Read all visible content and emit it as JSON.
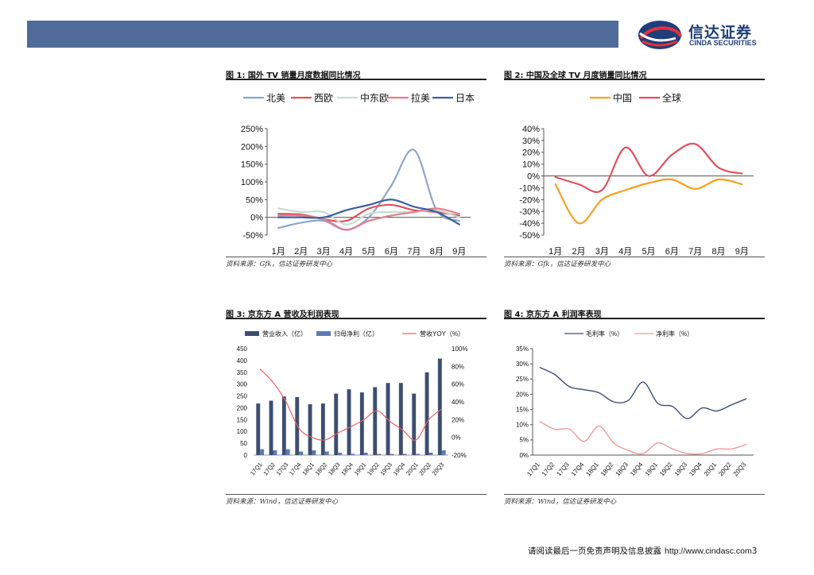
{
  "header": {
    "brand_cn": "信达证券",
    "brand_en": "CINDA SECURITIES",
    "bar_color": "#4f6b99",
    "brand_color": "#1f3d7a",
    "logo_icon": "cinda-swirl-logo"
  },
  "panels": [
    {
      "title": "图 1:  国外 TV 销量月度数据同比情况",
      "source": "资料来源：Gfk，信达证券研发中心"
    },
    {
      "title": "图 2:  中国及全球 TV 月度销量同比情况",
      "source": "资料来源：Gfk，信达证券研发中心"
    },
    {
      "title": "图 3:  京东方 A 营收及利润表现",
      "source": "资料来源：Wind，信达证券研发中心"
    },
    {
      "title": "图 4:  京东方 A 利润率表现",
      "source": "资料来源：Wind，信达证券研发中心"
    }
  ],
  "footer": {
    "text": "请阅读最后一页免责声明及信息披露",
    "url": "http://www.cindasc.com",
    "page": "3"
  },
  "chart_data": [
    {
      "type": "line",
      "smooth": true,
      "categories": [
        "1月",
        "2月",
        "3月",
        "4月",
        "5月",
        "6月",
        "7月",
        "8月",
        "9月"
      ],
      "ylim": [
        -50,
        250
      ],
      "yticks": [
        -50,
        0,
        50,
        100,
        150,
        200,
        250
      ],
      "ytick_labels": [
        "-50%",
        "0%",
        "50%",
        "100%",
        "150%",
        "200%",
        "250%"
      ],
      "legend": "top",
      "series": [
        {
          "name": "北美",
          "color": "#8fa5c8",
          "values": [
            -30,
            -15,
            -10,
            -35,
            0,
            90,
            190,
            20,
            -10
          ]
        },
        {
          "name": "西欧",
          "color": "#e0505e",
          "values": [
            10,
            8,
            -5,
            -10,
            25,
            35,
            20,
            15,
            5
          ]
        },
        {
          "name": "中东欧",
          "color": "#c8dcd4",
          "values": [
            25,
            15,
            15,
            -20,
            10,
            15,
            15,
            20,
            0
          ]
        },
        {
          "name": "拉美",
          "color": "#e07f90",
          "values": [
            5,
            5,
            -5,
            -35,
            -10,
            5,
            15,
            25,
            10
          ]
        },
        {
          "name": "日本",
          "color": "#3b5fa0",
          "values": [
            0,
            0,
            0,
            20,
            35,
            50,
            30,
            15,
            -20
          ]
        }
      ]
    },
    {
      "type": "line",
      "smooth": true,
      "categories": [
        "1月",
        "2月",
        "3月",
        "4月",
        "5月",
        "6月",
        "7月",
        "8月",
        "9月"
      ],
      "ylim": [
        -50,
        40
      ],
      "yticks": [
        -50,
        -40,
        -30,
        -20,
        -10,
        0,
        10,
        20,
        30,
        40
      ],
      "ytick_labels": [
        "-50%",
        "-40%",
        "-30%",
        "-20%",
        "-10%",
        "0%",
        "10%",
        "20%",
        "30%",
        "40%"
      ],
      "legend": "top",
      "series": [
        {
          "name": "中国",
          "color": "#f5a020",
          "values": [
            -7,
            -40,
            -20,
            -12,
            -6,
            -3,
            -11,
            -3,
            -7
          ]
        },
        {
          "name": "全球",
          "color": "#e0505e",
          "values": [
            -1,
            -7,
            -12,
            24,
            0,
            18,
            27,
            7,
            2
          ]
        }
      ]
    },
    {
      "type": "bar",
      "categories": [
        "17Q1",
        "17Q2",
        "17Q3",
        "17Q4",
        "18Q1",
        "18Q2",
        "18Q3",
        "18Q4",
        "19Q1",
        "19Q2",
        "19Q3",
        "19Q4",
        "20Q1",
        "20Q2",
        "20Q3"
      ],
      "ylim": [
        0,
        450
      ],
      "yticks": [
        0,
        50,
        100,
        150,
        200,
        250,
        300,
        350,
        400,
        450
      ],
      "ytick_labels": [
        "0",
        "50",
        "100",
        "150",
        "200",
        "250",
        "300",
        "350",
        "400",
        "450"
      ],
      "y2lim": [
        -20,
        100
      ],
      "y2ticks": [
        -20,
        0,
        20,
        40,
        60,
        80,
        100
      ],
      "y2tick_labels": [
        "-20%",
        "0%",
        "20%",
        "40%",
        "60%",
        "80%",
        "100%"
      ],
      "legend": "top",
      "series": [
        {
          "name": "营业收入（亿）",
          "type": "bar",
          "color": "#3d4e6e",
          "values": [
            218,
            230,
            248,
            245,
            215,
            218,
            260,
            278,
            265,
            287,
            305,
            305,
            260,
            350,
            408
          ]
        },
        {
          "name": "归母净利（亿）",
          "type": "bar",
          "color": "#5b7ab8",
          "values": [
            25,
            20,
            25,
            15,
            20,
            15,
            10,
            5,
            10,
            5,
            5,
            5,
            5,
            10,
            20
          ]
        },
        {
          "name": "营收YOY（%）",
          "type": "line",
          "axis": "y2",
          "color": "#ee6060",
          "values": [
            77,
            62,
            40,
            10,
            0,
            -3,
            5,
            12,
            20,
            30,
            18,
            8,
            -3,
            20,
            32
          ]
        }
      ]
    },
    {
      "type": "line",
      "smooth": true,
      "categories": [
        "17Q1",
        "17Q2",
        "17Q3",
        "17Q4",
        "18Q1",
        "18Q2",
        "18Q3",
        "18Q4",
        "19Q1",
        "19Q2",
        "19Q3",
        "19Q4",
        "20Q1",
        "20Q2",
        "20Q3"
      ],
      "ylim": [
        0,
        35
      ],
      "yticks": [
        0,
        5,
        10,
        15,
        20,
        25,
        30,
        35
      ],
      "ytick_labels": [
        "0%",
        "5%",
        "10%",
        "15%",
        "20%",
        "25%",
        "30%",
        "35%"
      ],
      "legend": "top",
      "series": [
        {
          "name": "毛利率（%）",
          "color": "#3d4e6e",
          "values": [
            28.8,
            26.5,
            22.5,
            21.5,
            20.5,
            17.5,
            18,
            24,
            17,
            16,
            12,
            15.5,
            14.5,
            16.5,
            18.5
          ]
        },
        {
          "name": "净利率（%）",
          "color": "#f29a9a",
          "values": [
            11,
            8.5,
            8.5,
            4.5,
            9.5,
            4,
            1.5,
            0.5,
            4,
            2,
            0.5,
            0.5,
            2,
            2,
            3.5
          ]
        }
      ]
    }
  ]
}
